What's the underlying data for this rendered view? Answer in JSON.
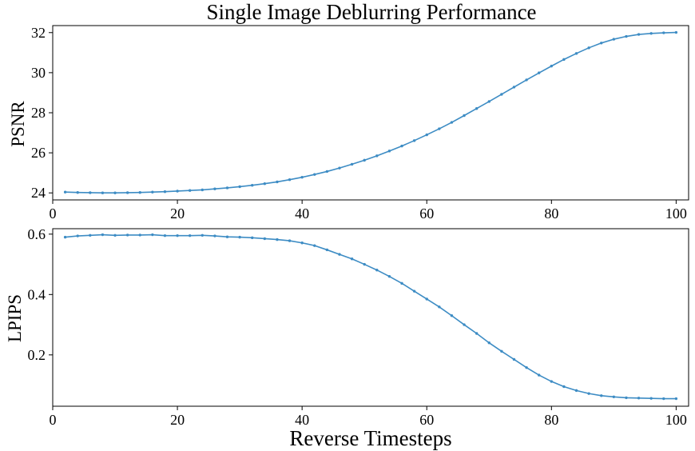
{
  "chart_data": [
    {
      "type": "line",
      "title": "Single Image Deblurring Performance",
      "xlabel": "",
      "ylabel": "PSNR",
      "xlim": [
        0,
        102
      ],
      "ylim": [
        23.65,
        32.35
      ],
      "xticks": [
        0,
        20,
        40,
        60,
        80,
        100
      ],
      "yticks": [
        24,
        26,
        28,
        30,
        32
      ],
      "grid": false,
      "color": "#3d8cc4",
      "x": [
        2,
        4,
        6,
        8,
        10,
        12,
        14,
        16,
        18,
        20,
        22,
        24,
        26,
        28,
        30,
        32,
        34,
        36,
        38,
        40,
        42,
        44,
        46,
        48,
        50,
        52,
        54,
        56,
        58,
        60,
        62,
        64,
        66,
        68,
        70,
        72,
        74,
        76,
        78,
        80,
        82,
        84,
        86,
        88,
        90,
        92,
        94,
        96,
        98,
        100
      ],
      "y": [
        24.04,
        24.02,
        24.01,
        24.0,
        24.0,
        24.01,
        24.02,
        24.04,
        24.06,
        24.09,
        24.12,
        24.15,
        24.2,
        24.25,
        24.31,
        24.38,
        24.46,
        24.55,
        24.66,
        24.78,
        24.92,
        25.07,
        25.24,
        25.43,
        25.63,
        25.85,
        26.09,
        26.34,
        26.61,
        26.9,
        27.2,
        27.52,
        27.86,
        28.21,
        28.56,
        28.92,
        29.28,
        29.64,
        29.99,
        30.33,
        30.66,
        30.96,
        31.24,
        31.48,
        31.67,
        31.81,
        31.91,
        31.96,
        31.99,
        32.01
      ]
    },
    {
      "type": "line",
      "title": "",
      "xlabel": "Reverse Timesteps",
      "ylabel": "LPIPS",
      "xlim": [
        0,
        102
      ],
      "ylim": [
        0.03,
        0.618
      ],
      "xticks": [
        0,
        20,
        40,
        60,
        80,
        100
      ],
      "yticks": [
        0.2,
        0.4,
        0.6
      ],
      "yticklabels": [
        "0.2",
        "0.4",
        "0.6"
      ],
      "grid": false,
      "color": "#3d8cc4",
      "x": [
        2,
        4,
        6,
        8,
        10,
        12,
        14,
        16,
        18,
        20,
        22,
        24,
        26,
        28,
        30,
        32,
        34,
        36,
        38,
        40,
        42,
        44,
        46,
        48,
        50,
        52,
        54,
        56,
        58,
        60,
        62,
        64,
        66,
        68,
        70,
        72,
        74,
        76,
        78,
        80,
        82,
        84,
        86,
        88,
        90,
        92,
        94,
        96,
        98,
        100
      ],
      "y": [
        0.59,
        0.594,
        0.596,
        0.598,
        0.596,
        0.597,
        0.597,
        0.598,
        0.595,
        0.595,
        0.595,
        0.596,
        0.594,
        0.591,
        0.59,
        0.588,
        0.585,
        0.582,
        0.578,
        0.571,
        0.562,
        0.548,
        0.533,
        0.518,
        0.5,
        0.481,
        0.46,
        0.437,
        0.411,
        0.385,
        0.359,
        0.33,
        0.3,
        0.271,
        0.24,
        0.212,
        0.185,
        0.158,
        0.133,
        0.112,
        0.095,
        0.082,
        0.072,
        0.065,
        0.061,
        0.058,
        0.057,
        0.056,
        0.055,
        0.055
      ]
    }
  ]
}
